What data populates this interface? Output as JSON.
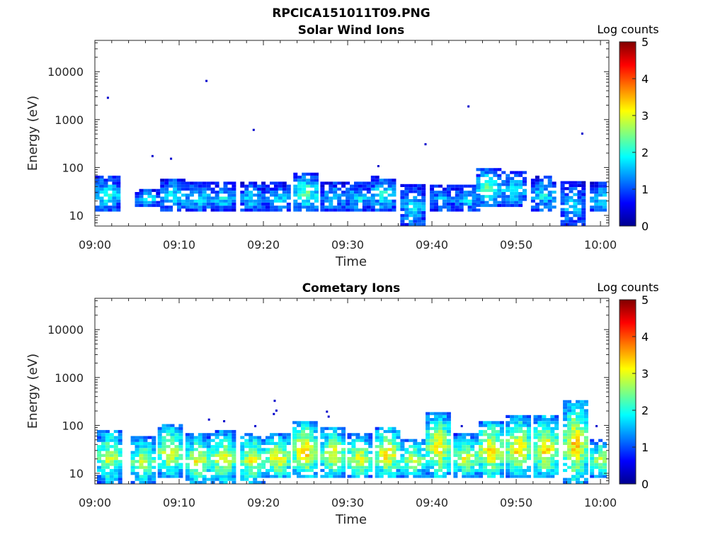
{
  "figure": {
    "title": "RPCICA151011T09.PNG"
  },
  "colorbar": {
    "label": "Log counts",
    "ticks": [
      "0",
      "1",
      "2",
      "3",
      "4",
      "5"
    ],
    "range": [
      0,
      5
    ],
    "colormap": "jet"
  },
  "chart_data": [
    {
      "type": "heatmap",
      "title": "Solar Wind Ions",
      "xlabel": "Time",
      "ylabel": "Energy (eV)",
      "xlim": [
        "09:00",
        "10:01"
      ],
      "ylim": [
        6,
        45000
      ],
      "yscale": "log",
      "x_ticks": [
        "09:00",
        "09:10",
        "09:20",
        "09:30",
        "09:40",
        "09:50",
        "10:00"
      ],
      "y_ticks": [
        "10",
        "100",
        "1000",
        "10000"
      ],
      "bursts": [
        {
          "t": 1.3,
          "emin": 12,
          "emax": 65,
          "peak": 2.0
        },
        {
          "t": 6.0,
          "emin": 15,
          "emax": 35,
          "peak": 1.8
        },
        {
          "t": 9.0,
          "emin": 12,
          "emax": 55,
          "peak": 2.0
        },
        {
          "t": 12.0,
          "emin": 12,
          "emax": 45,
          "peak": 1.9
        },
        {
          "t": 15.0,
          "emin": 12,
          "emax": 45,
          "peak": 1.8
        },
        {
          "t": 18.5,
          "emin": 12,
          "emax": 45,
          "peak": 1.8
        },
        {
          "t": 21.5,
          "emin": 12,
          "emax": 45,
          "peak": 1.7
        },
        {
          "t": 24.8,
          "emin": 12,
          "emax": 75,
          "peak": 2.4
        },
        {
          "t": 28.0,
          "emin": 12,
          "emax": 45,
          "peak": 1.8
        },
        {
          "t": 31.0,
          "emin": 12,
          "emax": 45,
          "peak": 1.8
        },
        {
          "t": 34.0,
          "emin": 12,
          "emax": 65,
          "peak": 2.0
        },
        {
          "t": 37.5,
          "emin": 6,
          "emax": 40,
          "peak": 1.8
        },
        {
          "t": 41.0,
          "emin": 12,
          "emax": 40,
          "peak": 1.6
        },
        {
          "t": 44.0,
          "emin": 12,
          "emax": 40,
          "peak": 1.7
        },
        {
          "t": 46.5,
          "emin": 15,
          "emax": 95,
          "peak": 2.3
        },
        {
          "t": 49.5,
          "emin": 15,
          "emax": 80,
          "peak": 2.0
        },
        {
          "t": 53.0,
          "emin": 12,
          "emax": 60,
          "peak": 1.9
        },
        {
          "t": 56.5,
          "emin": 6,
          "emax": 45,
          "peak": 1.7
        },
        {
          "t": 60.0,
          "emin": 12,
          "emax": 45,
          "peak": 1.8
        }
      ],
      "isolated_points": [
        {
          "t": 1.5,
          "energy": 2800
        },
        {
          "t": 6.8,
          "energy": 170
        },
        {
          "t": 9.0,
          "energy": 150
        },
        {
          "t": 13.2,
          "energy": 6300
        },
        {
          "t": 18.8,
          "energy": 600
        },
        {
          "t": 33.6,
          "energy": 105
        },
        {
          "t": 39.2,
          "energy": 300
        },
        {
          "t": 44.3,
          "energy": 1850
        },
        {
          "t": 57.8,
          "energy": 500
        }
      ]
    },
    {
      "type": "heatmap",
      "title": "Cometary Ions",
      "xlabel": "Time",
      "ylabel": "Energy (eV)",
      "xlim": [
        "09:00",
        "10:01"
      ],
      "ylim": [
        6,
        45000
      ],
      "yscale": "log",
      "x_ticks": [
        "09:00",
        "09:10",
        "09:20",
        "09:30",
        "09:40",
        "09:50",
        "10:00"
      ],
      "y_ticks": [
        "10",
        "100",
        "1000",
        "10000"
      ],
      "bursts": [
        {
          "t": 1.5,
          "emin": 6,
          "emax": 80,
          "peak": 3.0
        },
        {
          "t": 5.5,
          "emin": 6,
          "emax": 55,
          "peak": 3.0
        },
        {
          "t": 8.7,
          "emin": 8,
          "emax": 100,
          "peak": 3.2
        },
        {
          "t": 12.0,
          "emin": 6,
          "emax": 60,
          "peak": 3.2
        },
        {
          "t": 15.0,
          "emin": 6,
          "emax": 70,
          "peak": 3.2
        },
        {
          "t": 18.5,
          "emin": 6,
          "emax": 65,
          "peak": 3.2
        },
        {
          "t": 21.5,
          "emin": 8,
          "emax": 60,
          "peak": 3.4
        },
        {
          "t": 24.7,
          "emin": 8,
          "emax": 120,
          "peak": 3.6
        },
        {
          "t": 28.0,
          "emin": 8,
          "emax": 90,
          "peak": 3.2
        },
        {
          "t": 31.2,
          "emin": 8,
          "emax": 60,
          "peak": 3.2
        },
        {
          "t": 34.5,
          "emin": 8,
          "emax": 90,
          "peak": 3.5
        },
        {
          "t": 37.5,
          "emin": 8,
          "emax": 50,
          "peak": 3.0
        },
        {
          "t": 40.5,
          "emin": 8,
          "emax": 180,
          "peak": 3.4
        },
        {
          "t": 43.8,
          "emin": 8,
          "emax": 60,
          "peak": 3.2
        },
        {
          "t": 46.8,
          "emin": 8,
          "emax": 120,
          "peak": 3.6
        },
        {
          "t": 50.0,
          "emin": 8,
          "emax": 150,
          "peak": 3.5
        },
        {
          "t": 53.3,
          "emin": 8,
          "emax": 150,
          "peak": 3.5
        },
        {
          "t": 56.8,
          "emin": 6,
          "emax": 300,
          "peak": 3.5
        },
        {
          "t": 60.0,
          "emin": 8,
          "emax": 50,
          "peak": 3.0
        }
      ],
      "isolated_points": [
        {
          "t": 13.5,
          "energy": 130
        },
        {
          "t": 15.3,
          "energy": 120
        },
        {
          "t": 19.0,
          "energy": 95
        },
        {
          "t": 21.3,
          "energy": 320
        },
        {
          "t": 21.5,
          "energy": 200
        },
        {
          "t": 21.2,
          "energy": 170
        },
        {
          "t": 27.5,
          "energy": 190
        },
        {
          "t": 27.7,
          "energy": 150
        },
        {
          "t": 43.5,
          "energy": 95
        },
        {
          "t": 59.5,
          "energy": 95
        }
      ]
    }
  ]
}
